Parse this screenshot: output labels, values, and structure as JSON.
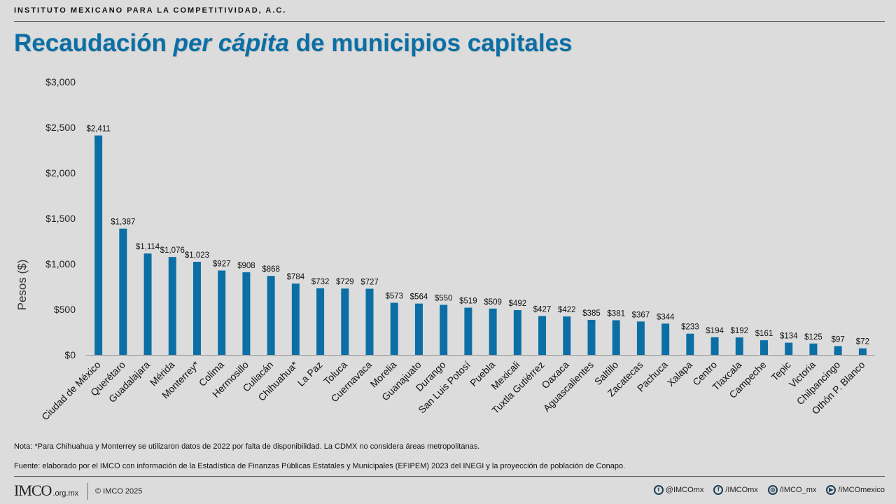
{
  "header": {
    "org_name": "INSTITUTO MEXICANO PARA LA COMPETITIVIDAD, A.C.",
    "title_part1": "Recaudación ",
    "title_italic": "per cápita",
    "title_part2": " de municipios capitales"
  },
  "chart_data": {
    "type": "bar",
    "title": "Recaudación per cápita de municipios capitales",
    "xlabel": "",
    "ylabel": "Pesos ($)",
    "ylim": [
      0,
      3000
    ],
    "yticks": [
      0,
      500,
      1000,
      1500,
      2000,
      2500,
      3000
    ],
    "ytick_labels": [
      "$0",
      "$500",
      "$1,000",
      "$1,500",
      "$2,000",
      "$2,500",
      "$3,000"
    ],
    "categories": [
      "Ciudad de México",
      "Querétaro",
      "Guadalajara",
      "Mérida",
      "Monterrey*",
      "Colima",
      "Hermosillo",
      "Culiacán",
      "Chihuahua*",
      "La Paz",
      "Toluca",
      "Cuernavaca",
      "Morelia",
      "Guanajuato",
      "Durango",
      "San Luis Potosí",
      "Puebla",
      "Mexicali",
      "Tuxtla Gutiérrez",
      "Oaxaca",
      "Aguascalientes",
      "Saltillo",
      "Zacatecas",
      "Pachuca",
      "Xalapa",
      "Centro",
      "Tlaxcala",
      "Campeche",
      "Tepic",
      "Victoria",
      "Chilpancingo",
      "Othón P. Blanco"
    ],
    "values": [
      2411,
      1387,
      1114,
      1076,
      1023,
      927,
      908,
      868,
      784,
      732,
      729,
      727,
      573,
      564,
      550,
      519,
      509,
      492,
      427,
      422,
      385,
      381,
      367,
      344,
      233,
      194,
      192,
      161,
      134,
      125,
      97,
      72
    ],
    "value_labels": [
      "$2,411",
      "$1,387",
      "$1,114",
      "$1,076",
      "$1,023",
      "$927",
      "$908",
      "$868",
      "$784",
      "$732",
      "$729",
      "$727",
      "$573",
      "$564",
      "$550",
      "$519",
      "$509",
      "$492",
      "$427",
      "$422",
      "$385",
      "$381",
      "$367",
      "$344",
      "$233",
      "$194",
      "$192",
      "$161",
      "$134",
      "$125",
      "$97",
      "$72"
    ],
    "bar_color": "#0b6fa6",
    "grid": false
  },
  "notes": {
    "note": "Nota: *Para Chihuahua y Monterrey se utilizaron datos de 2022 por falta de disponibilidad. La CDMX no considera áreas metropolitanas.",
    "source": "Fuente: elaborado por el IMCO  con información de la Estadística de Finanzas Públicas Estatales y Municipales (EFIPEM) 2023 del INEGI y  la proyección de población de Conapo."
  },
  "footer": {
    "logo_text": "IMCO",
    "logo_suffix": ".org.mx",
    "copyright": "© IMCO  2025",
    "socials": [
      {
        "icon": "twitter-icon",
        "glyph": "t",
        "label": "@IMCOmx"
      },
      {
        "icon": "facebook-icon",
        "glyph": "f",
        "label": "/IMCOmx"
      },
      {
        "icon": "instagram-icon",
        "glyph": "◎",
        "label": "/IMCO_mx"
      },
      {
        "icon": "youtube-icon",
        "glyph": "▶",
        "label": "/IMCOmexico"
      }
    ]
  }
}
